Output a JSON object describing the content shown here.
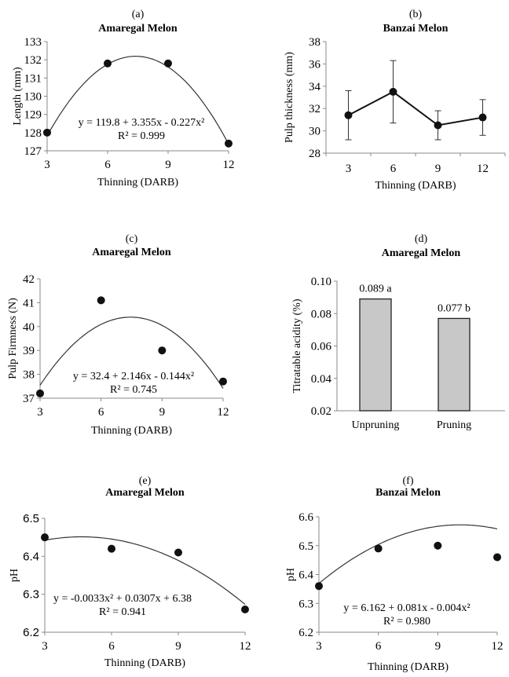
{
  "chart_data": [
    {
      "panel": "(a)",
      "title": "Amaregal Melon",
      "type": "scatter",
      "xlabel": "Thinning (DARB)",
      "ylabel": "Length  (mm)",
      "x": [
        3,
        6,
        9,
        12
      ],
      "y": [
        128.0,
        131.8,
        131.8,
        127.4
      ],
      "xticks": [
        "3",
        "6",
        "9",
        "12"
      ],
      "xlim": [
        3,
        12
      ],
      "ylim": [
        127,
        133
      ],
      "yticks": [
        "127",
        "128",
        "129",
        "130",
        "131",
        "132",
        "133"
      ],
      "fit": {
        "type": "quadratic",
        "c0": 119.8,
        "c1": 3.355,
        "c2": -0.227
      },
      "equation": "y = 119.8 + 3.355x - 0.227x²",
      "r2": "R² = 0.999"
    },
    {
      "panel": "(b)",
      "title": "Banzai Melon",
      "type": "line",
      "xlabel": "Thinning (DARB)",
      "ylabel": "Pulp thickness  (mm)",
      "categories": [
        "3",
        "6",
        "9",
        "12"
      ],
      "y": [
        31.4,
        33.5,
        30.5,
        31.2
      ],
      "error_low": [
        29.2,
        30.7,
        29.2,
        29.6
      ],
      "error_high": [
        33.6,
        36.3,
        31.8,
        32.8
      ],
      "ylim": [
        28,
        38
      ],
      "yticks": [
        "28",
        "30",
        "32",
        "34",
        "36",
        "38"
      ]
    },
    {
      "panel": "(c)",
      "title": "Amaregal Melon",
      "type": "scatter",
      "xlabel": "Thinning (DARB)",
      "ylabel": "Pulp Firmness  (N)",
      "x": [
        3,
        6,
        9,
        12
      ],
      "y": [
        37.2,
        41.1,
        39.0,
        37.7
      ],
      "xticks": [
        "3",
        "6",
        "9",
        "12"
      ],
      "xlim": [
        3,
        12
      ],
      "ylim": [
        37,
        42
      ],
      "yticks": [
        "37",
        "38",
        "39",
        "40",
        "41",
        "42"
      ],
      "fit": {
        "type": "quadratic",
        "c0": 32.4,
        "c1": 2.146,
        "c2": -0.144
      },
      "equation": "y = 32.4 + 2.146x - 0.144x²",
      "r2": "R² = 0.745"
    },
    {
      "panel": "(d)",
      "title": "Amaregal Melon",
      "type": "bar",
      "xlabel": "",
      "ylabel": "Titratable acidity (%)",
      "categories": [
        "Unpruning",
        "Pruning"
      ],
      "values": [
        0.089,
        0.077
      ],
      "data_labels": [
        "0.089 a",
        "0.077 b"
      ],
      "bar_color": "#c8c8c8",
      "ylim": [
        0.02,
        0.1
      ],
      "yticks": [
        "0.02",
        "0.04",
        "0.06",
        "0.08",
        "0.10"
      ]
    },
    {
      "panel": "(e)",
      "title": "Amaregal Melon",
      "type": "scatter",
      "xlabel": "Thinning (DARB)",
      "ylabel": "pH",
      "x": [
        3,
        6,
        9,
        12
      ],
      "y": [
        6.45,
        6.42,
        6.41,
        6.26
      ],
      "xticks": [
        "3",
        "6",
        "9",
        "12"
      ],
      "xlim": [
        3,
        12
      ],
      "ylim": [
        6.2,
        6.5
      ],
      "yticks": [
        "6.2",
        "6.3",
        "6.4",
        "6.5"
      ],
      "fit": {
        "type": "quadratic",
        "c0": 6.38,
        "c1": 0.0307,
        "c2": -0.0033
      },
      "equation": "y = -0.0033x² + 0.0307x + 6.38",
      "r2": "R² = 0.941"
    },
    {
      "panel": "(f)",
      "title": "Banzai Melon",
      "type": "scatter",
      "xlabel": "Thinning (DARB)",
      "ylabel": "pH",
      "x": [
        3,
        6,
        9,
        12
      ],
      "y": [
        6.36,
        6.49,
        6.5,
        6.46
      ],
      "xticks": [
        "3",
        "6",
        "9",
        "12"
      ],
      "xlim": [
        3,
        12
      ],
      "ylim": [
        6.2,
        6.6
      ],
      "yticks": [
        "6.2",
        "6.3",
        "6.4",
        "6.5",
        "6.6"
      ],
      "fit": {
        "type": "quadratic",
        "c0": 6.162,
        "c1": 0.081,
        "c2": -0.004
      },
      "equation": "y = 6.162 + 0.081x - 0.004x²",
      "r2": "R² = 0.980"
    }
  ]
}
